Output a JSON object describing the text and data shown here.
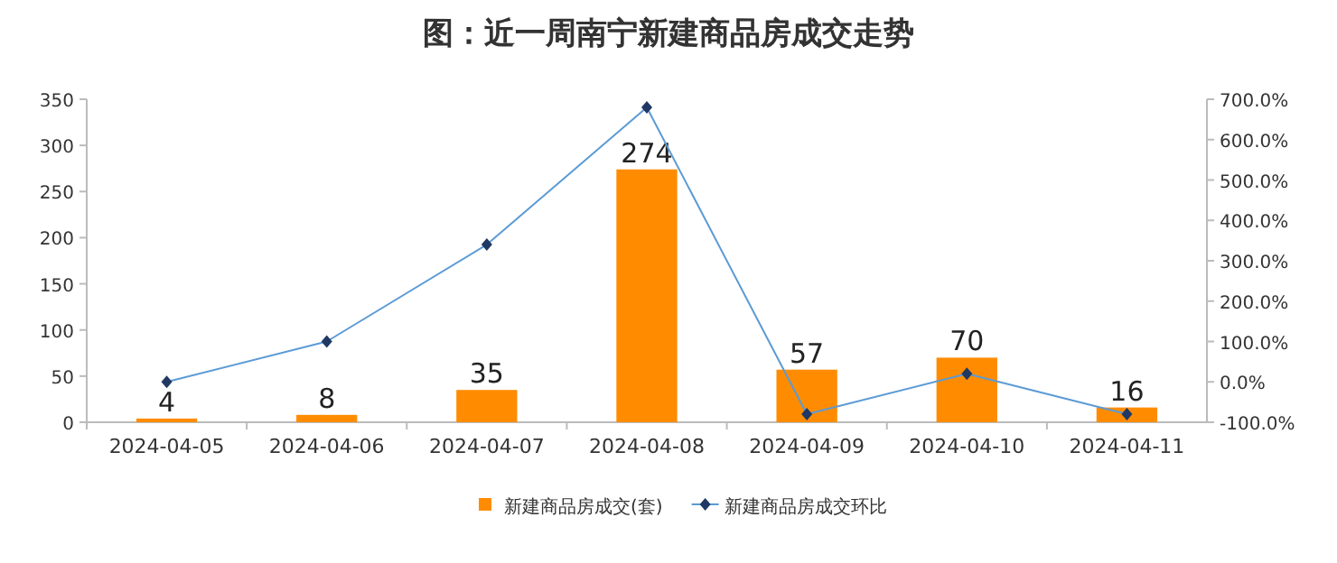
{
  "chart_data": {
    "type": "bar",
    "title": "图：近一周南宁新建商品房成交走势",
    "categories": [
      "2024-04-05",
      "2024-04-06",
      "2024-04-07",
      "2024-04-08",
      "2024-04-09",
      "2024-04-10",
      "2024-04-11"
    ],
    "series": [
      {
        "name": "新建商品房成交(套)",
        "color": "#ff8c00",
        "values": [
          4,
          8,
          35,
          274,
          57,
          70,
          16
        ],
        "value_labels": [
          "4",
          "8",
          "35",
          "274",
          "57",
          "70",
          "16"
        ]
      },
      {
        "name": "新建商品房成交环比",
        "type": "line",
        "axis": "y2",
        "color": "#5b9bd5",
        "marker": "diamond",
        "values": [
          0,
          100,
          340,
          680,
          -80,
          20,
          -80
        ]
      }
    ],
    "ylim": [
      0,
      350
    ],
    "yticks": [
      0,
      50,
      100,
      150,
      200,
      250,
      300,
      350
    ],
    "y2lim": [
      -100,
      700
    ],
    "y2ticks": [
      {
        "value": -100,
        "label": "-100.0%"
      },
      {
        "value": 0,
        "label": "0.0%"
      },
      {
        "value": 100,
        "label": "100.0%"
      },
      {
        "value": 200,
        "label": "200.0%"
      },
      {
        "value": 300,
        "label": "300.0%"
      },
      {
        "value": 400,
        "label": "400.0%"
      },
      {
        "value": 500,
        "label": "500.0%"
      },
      {
        "value": 600,
        "label": "600.0%"
      },
      {
        "value": 700,
        "label": "700.0%"
      }
    ],
    "legend": "bottom"
  }
}
